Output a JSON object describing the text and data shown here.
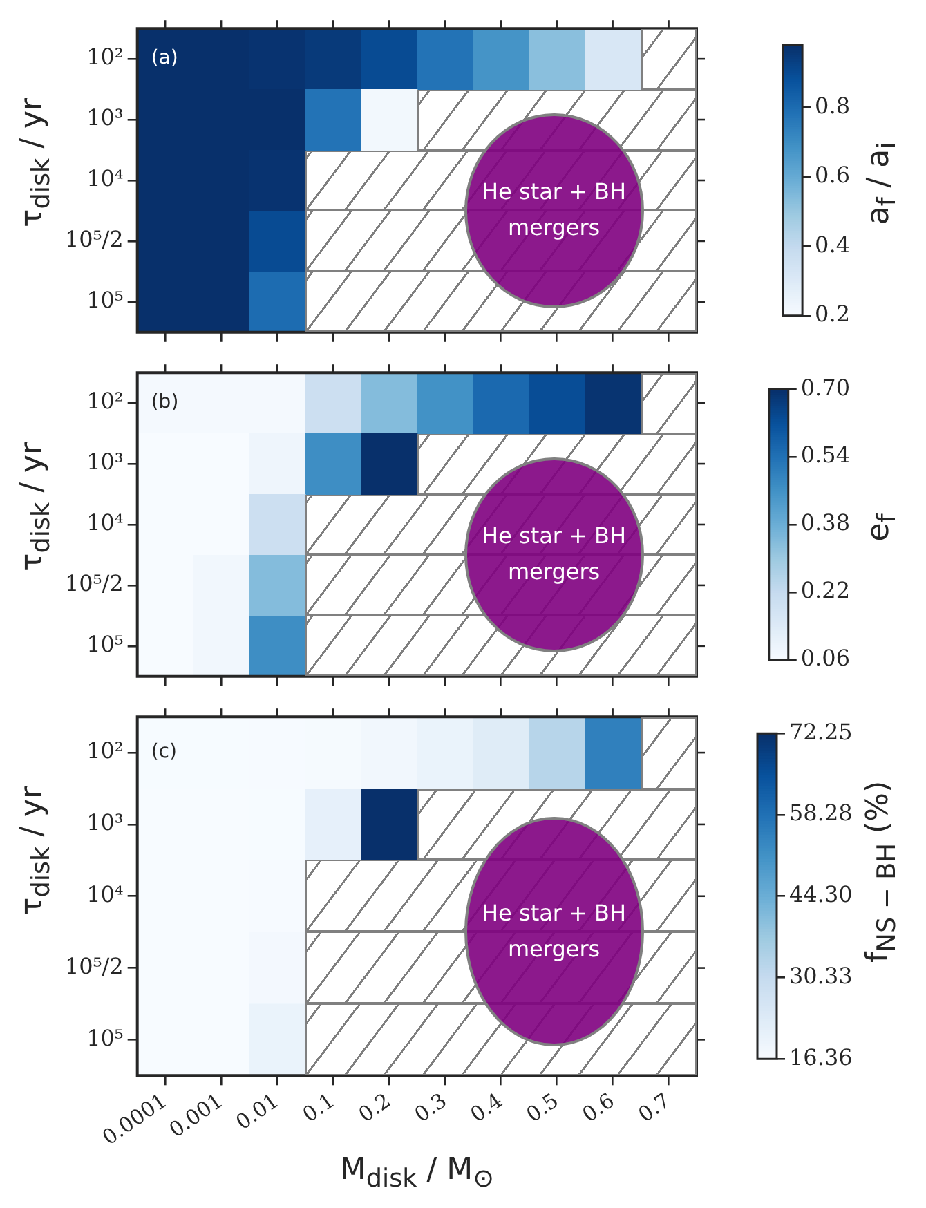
{
  "chart_data": [
    {
      "type": "heatmap",
      "categories": [
        "0.0001",
        "0.001",
        "0.01",
        "0.1",
        "0.2",
        "0.3",
        "0.4",
        "0.5",
        "0.6",
        "0.7"
      ],
      "y_categories": [
        "10²",
        "10³",
        "10⁴",
        "10⁵/2",
        "10⁵"
      ],
      "cells": [
        [
          0.98,
          0.98,
          0.97,
          0.95,
          0.9,
          0.78,
          0.68,
          0.53,
          0.32,
          null
        ],
        [
          0.98,
          0.98,
          0.98,
          0.78,
          0.22,
          null,
          null,
          null,
          null,
          null
        ],
        [
          0.98,
          0.98,
          0.97,
          null,
          null,
          null,
          null,
          null,
          null,
          null
        ],
        [
          0.98,
          0.98,
          0.9,
          null,
          null,
          null,
          null,
          null,
          null,
          null
        ],
        [
          0.98,
          0.98,
          0.8,
          null,
          null,
          null,
          null,
          null,
          null,
          null
        ]
      ],
      "clim": [
        0.2,
        0.98
      ],
      "cticks": [
        0.2,
        0.4,
        0.6,
        0.8
      ],
      "clabel": "a$_{f}$ / a$_{i}$",
      "ylabel": "τ$_{disk}$ / yr",
      "annotations": [
        "(a)",
        "He star + BH mergers"
      ],
      "tick_labels": "y"
    },
    {
      "type": "heatmap",
      "categories": [
        "0.0001",
        "0.001",
        "0.01",
        "0.1",
        "0.2",
        "0.3",
        "0.4",
        "0.5",
        "0.6",
        "0.7"
      ],
      "y_categories": [
        "10²",
        "10³",
        "10⁴",
        "10⁵/2",
        "10⁵"
      ],
      "cells": [
        [
          0.07,
          0.07,
          0.07,
          0.2,
          0.34,
          0.46,
          0.56,
          0.63,
          0.69,
          null
        ],
        [
          0.06,
          0.06,
          0.09,
          0.47,
          0.7,
          null,
          null,
          null,
          null,
          null
        ],
        [
          0.06,
          0.06,
          0.2,
          null,
          null,
          null,
          null,
          null,
          null,
          null
        ],
        [
          0.06,
          0.08,
          0.34,
          null,
          null,
          null,
          null,
          null,
          null,
          null
        ],
        [
          0.06,
          0.08,
          0.47,
          null,
          null,
          null,
          null,
          null,
          null,
          null
        ]
      ],
      "clim": [
        0.06,
        0.7
      ],
      "cticks": [
        0.06,
        0.22,
        0.38,
        0.54,
        {
          "value": 0.7,
          "label": "0.70"
        }
      ],
      "clabel": "e$_{f}$",
      "ylabel": "τ$_{disk}$ / yr",
      "annotations": [
        "(b)",
        "He star + BH mergers"
      ],
      "tick_labels": "y"
    },
    {
      "type": "heatmap",
      "categories": [
        "0.0001",
        "0.001",
        "0.01",
        "0.1",
        "0.2",
        "0.3",
        "0.4",
        "0.5",
        "0.6",
        "0.7"
      ],
      "y_categories": [
        "10²",
        "10³",
        "10⁴",
        "10⁵/2",
        "10⁵"
      ],
      "cells": [
        [
          16.5,
          16.5,
          16.6,
          17,
          18,
          20,
          23,
          33,
          55,
          null
        ],
        [
          16.4,
          16.4,
          16.5,
          21,
          72.25,
          null,
          null,
          null,
          null,
          null
        ],
        [
          16.4,
          16.4,
          16.6,
          null,
          null,
          null,
          null,
          null,
          null,
          null
        ],
        [
          16.4,
          16.4,
          17.5,
          null,
          null,
          null,
          null,
          null,
          null,
          null
        ],
        [
          16.4,
          16.4,
          20,
          null,
          null,
          null,
          null,
          null,
          null,
          null
        ]
      ],
      "clim": [
        16.36,
        72.25
      ],
      "cticks": [
        16.36,
        30.33,
        {
          "value": 44.3,
          "label": "44.30"
        },
        58.28,
        72.25
      ],
      "clabel": "f$_{NS − BH}$ (%)",
      "ylabel": "τ$_{disk}$ / yr",
      "xlabel": "M$_{disk}$ / M$_{⊙}$",
      "annotations": [
        "(c)",
        "He star + BH mergers"
      ]
    }
  ]
}
